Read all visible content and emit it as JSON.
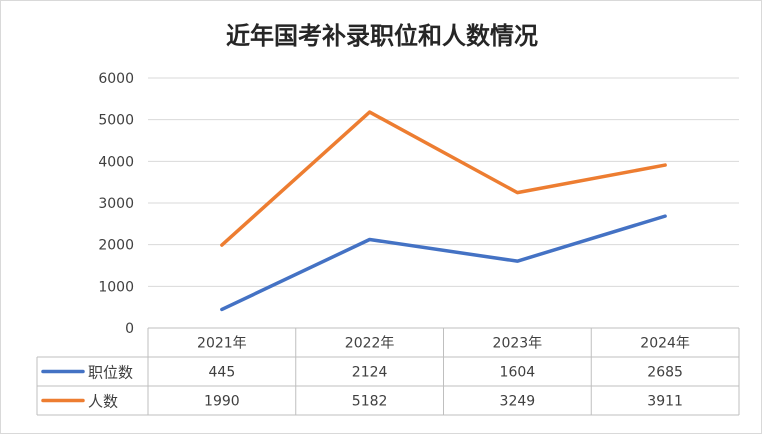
{
  "chart_data": {
    "type": "line",
    "title": "近年国考补录职位和人数情况",
    "categories": [
      "2021年",
      "2022年",
      "2023年",
      "2024年"
    ],
    "series": [
      {
        "name": "职位数",
        "values": [
          445,
          2124,
          1604,
          2685
        ],
        "color": "#4472c4"
      },
      {
        "name": "人数",
        "values": [
          1990,
          5182,
          3249,
          3911
        ],
        "color": "#ed7d31"
      }
    ],
    "y_ticks": [
      "0",
      "1000",
      "2000",
      "3000",
      "4000",
      "5000",
      "6000"
    ],
    "ylim": [
      0,
      6000
    ],
    "grid": true,
    "legend": "data-table-left",
    "data_table": true
  }
}
